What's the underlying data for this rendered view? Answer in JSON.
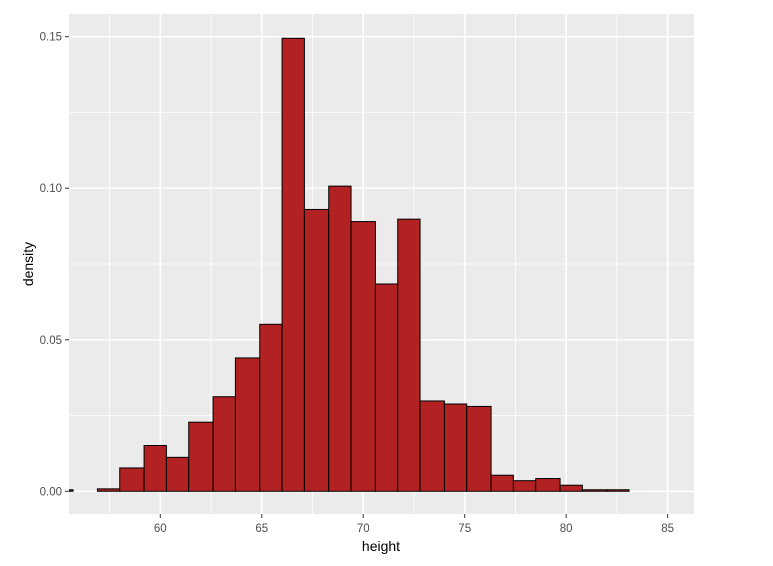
{
  "chart_data": {
    "type": "bar",
    "subtype": "histogram",
    "title": "",
    "xlabel": "height",
    "ylabel": "density",
    "xlim": [
      55.5,
      86.3
    ],
    "ylim": [
      -0.0075,
      0.1575
    ],
    "x_ticks": [
      60,
      65,
      70,
      75,
      80,
      85
    ],
    "y_ticks": [
      0.0,
      0.05,
      0.1,
      0.15
    ],
    "y_tick_labels": [
      "0.00",
      "0.05",
      "0.10",
      "0.15"
    ],
    "x_tick_labels": [
      "60",
      "65",
      "70",
      "75",
      "80",
      "85"
    ],
    "grid": true,
    "legend": "none",
    "bin_width": 1.14,
    "bins": [
      {
        "x0": 54.6,
        "x1": 55.7,
        "density": 0.0005
      },
      {
        "x0": 55.7,
        "x1": 56.9,
        "density": 0.0
      },
      {
        "x0": 56.9,
        "x1": 58.0,
        "density": 0.0008
      },
      {
        "x0": 58.0,
        "x1": 59.2,
        "density": 0.0077
      },
      {
        "x0": 59.2,
        "x1": 60.3,
        "density": 0.0151
      },
      {
        "x0": 60.3,
        "x1": 61.4,
        "density": 0.0112
      },
      {
        "x0": 61.4,
        "x1": 62.6,
        "density": 0.0228
      },
      {
        "x0": 62.6,
        "x1": 63.7,
        "density": 0.0312
      },
      {
        "x0": 63.7,
        "x1": 64.9,
        "density": 0.044
      },
      {
        "x0": 64.9,
        "x1": 66.0,
        "density": 0.0551
      },
      {
        "x0": 66.0,
        "x1": 67.1,
        "density": 0.1495
      },
      {
        "x0": 67.1,
        "x1": 68.3,
        "density": 0.093
      },
      {
        "x0": 68.3,
        "x1": 69.4,
        "density": 0.1007
      },
      {
        "x0": 69.4,
        "x1": 70.6,
        "density": 0.089
      },
      {
        "x0": 70.6,
        "x1": 71.7,
        "density": 0.0684
      },
      {
        "x0": 71.7,
        "x1": 72.8,
        "density": 0.0898
      },
      {
        "x0": 72.8,
        "x1": 74.0,
        "density": 0.0298
      },
      {
        "x0": 74.0,
        "x1": 75.1,
        "density": 0.0288
      },
      {
        "x0": 75.1,
        "x1": 76.3,
        "density": 0.028
      },
      {
        "x0": 76.3,
        "x1": 77.4,
        "density": 0.0053
      },
      {
        "x0": 77.4,
        "x1": 78.5,
        "density": 0.0035
      },
      {
        "x0": 78.5,
        "x1": 79.7,
        "density": 0.0042
      },
      {
        "x0": 79.7,
        "x1": 80.8,
        "density": 0.002
      },
      {
        "x0": 80.8,
        "x1": 82.0,
        "density": 0.0005
      },
      {
        "x0": 82.0,
        "x1": 83.1,
        "density": 0.0005
      }
    ],
    "colors": {
      "bar_fill": "#b22222",
      "bar_outline": "#000000",
      "panel_background": "#ebebeb",
      "grid": "#ffffff",
      "page_background": "#ffffff",
      "tick_text": "#4d4d4d",
      "axis_title": "#000000"
    }
  }
}
